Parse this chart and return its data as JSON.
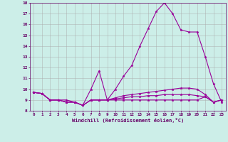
{
  "xlabel": "Windchill (Refroidissement éolien,°C)",
  "background_color": "#cceee8",
  "line_color": "#990099",
  "xlim": [
    -0.5,
    23.5
  ],
  "ylim": [
    8,
    18
  ],
  "xticks": [
    0,
    1,
    2,
    3,
    4,
    5,
    6,
    7,
    8,
    9,
    10,
    11,
    12,
    13,
    14,
    15,
    16,
    17,
    18,
    19,
    20,
    21,
    22,
    23
  ],
  "yticks": [
    8,
    9,
    10,
    11,
    12,
    13,
    14,
    15,
    16,
    17,
    18
  ],
  "series1": [
    9.7,
    9.6,
    9.0,
    9.0,
    9.0,
    8.8,
    8.5,
    10.0,
    11.7,
    9.0,
    10.0,
    11.2,
    12.2,
    14.0,
    15.6,
    17.2,
    18.0,
    17.0,
    15.5,
    15.3,
    15.3,
    13.0,
    10.5,
    8.8
  ],
  "series2": [
    9.7,
    9.6,
    9.0,
    9.0,
    8.8,
    8.8,
    8.5,
    9.0,
    9.0,
    9.0,
    9.2,
    9.4,
    9.5,
    9.6,
    9.7,
    9.8,
    9.9,
    10.0,
    10.1,
    10.1,
    10.0,
    9.5,
    8.8,
    9.0
  ],
  "series3": [
    9.7,
    9.6,
    9.0,
    9.0,
    8.8,
    8.8,
    8.5,
    9.0,
    9.0,
    9.0,
    9.1,
    9.2,
    9.3,
    9.3,
    9.4,
    9.4,
    9.5,
    9.5,
    9.5,
    9.5,
    9.4,
    9.3,
    8.8,
    9.0
  ],
  "series4": [
    9.7,
    9.6,
    9.0,
    9.0,
    8.8,
    8.8,
    8.5,
    9.0,
    9.0,
    9.0,
    9.0,
    9.0,
    9.0,
    9.0,
    9.0,
    9.0,
    9.0,
    9.0,
    9.0,
    9.0,
    9.0,
    9.3,
    8.8,
    9.0
  ]
}
